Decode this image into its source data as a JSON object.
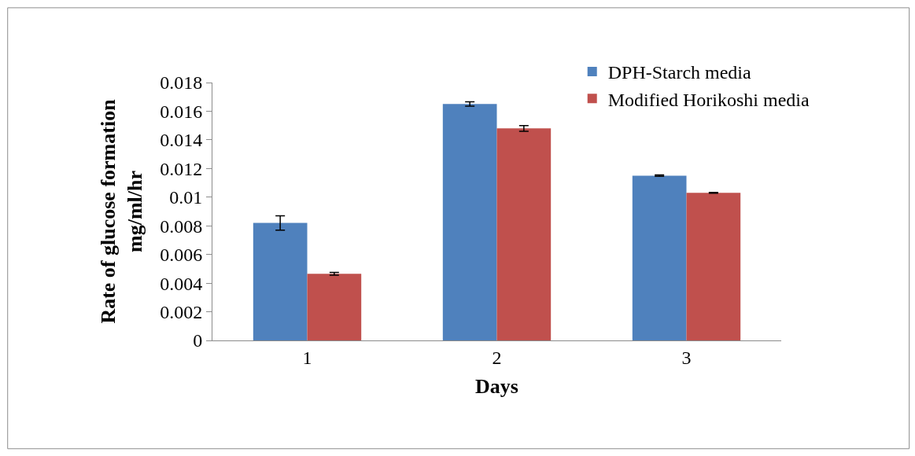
{
  "chart_data": {
    "type": "bar",
    "xlabel": "Days",
    "ylabel": "Rate of glucose formation\nmg/ml/hr",
    "categories": [
      "1",
      "2",
      "3"
    ],
    "series": [
      {
        "name": "DPH-Starch media",
        "color": "#4f81bd",
        "values": [
          0.0082,
          0.0165,
          0.0115
        ],
        "errors": [
          0.0005,
          0.00015,
          5e-05
        ]
      },
      {
        "name": "Modified Horikoshi media",
        "color": "#c0504d",
        "values": [
          0.00465,
          0.0148,
          0.0103
        ],
        "errors": [
          0.0001,
          0.0002,
          3e-05
        ]
      }
    ],
    "ylim": [
      0,
      0.018
    ],
    "yticks": [
      0,
      0.002,
      0.004,
      0.006,
      0.008,
      0.01,
      0.012,
      0.014,
      0.016,
      0.018
    ],
    "legend": "top right"
  }
}
